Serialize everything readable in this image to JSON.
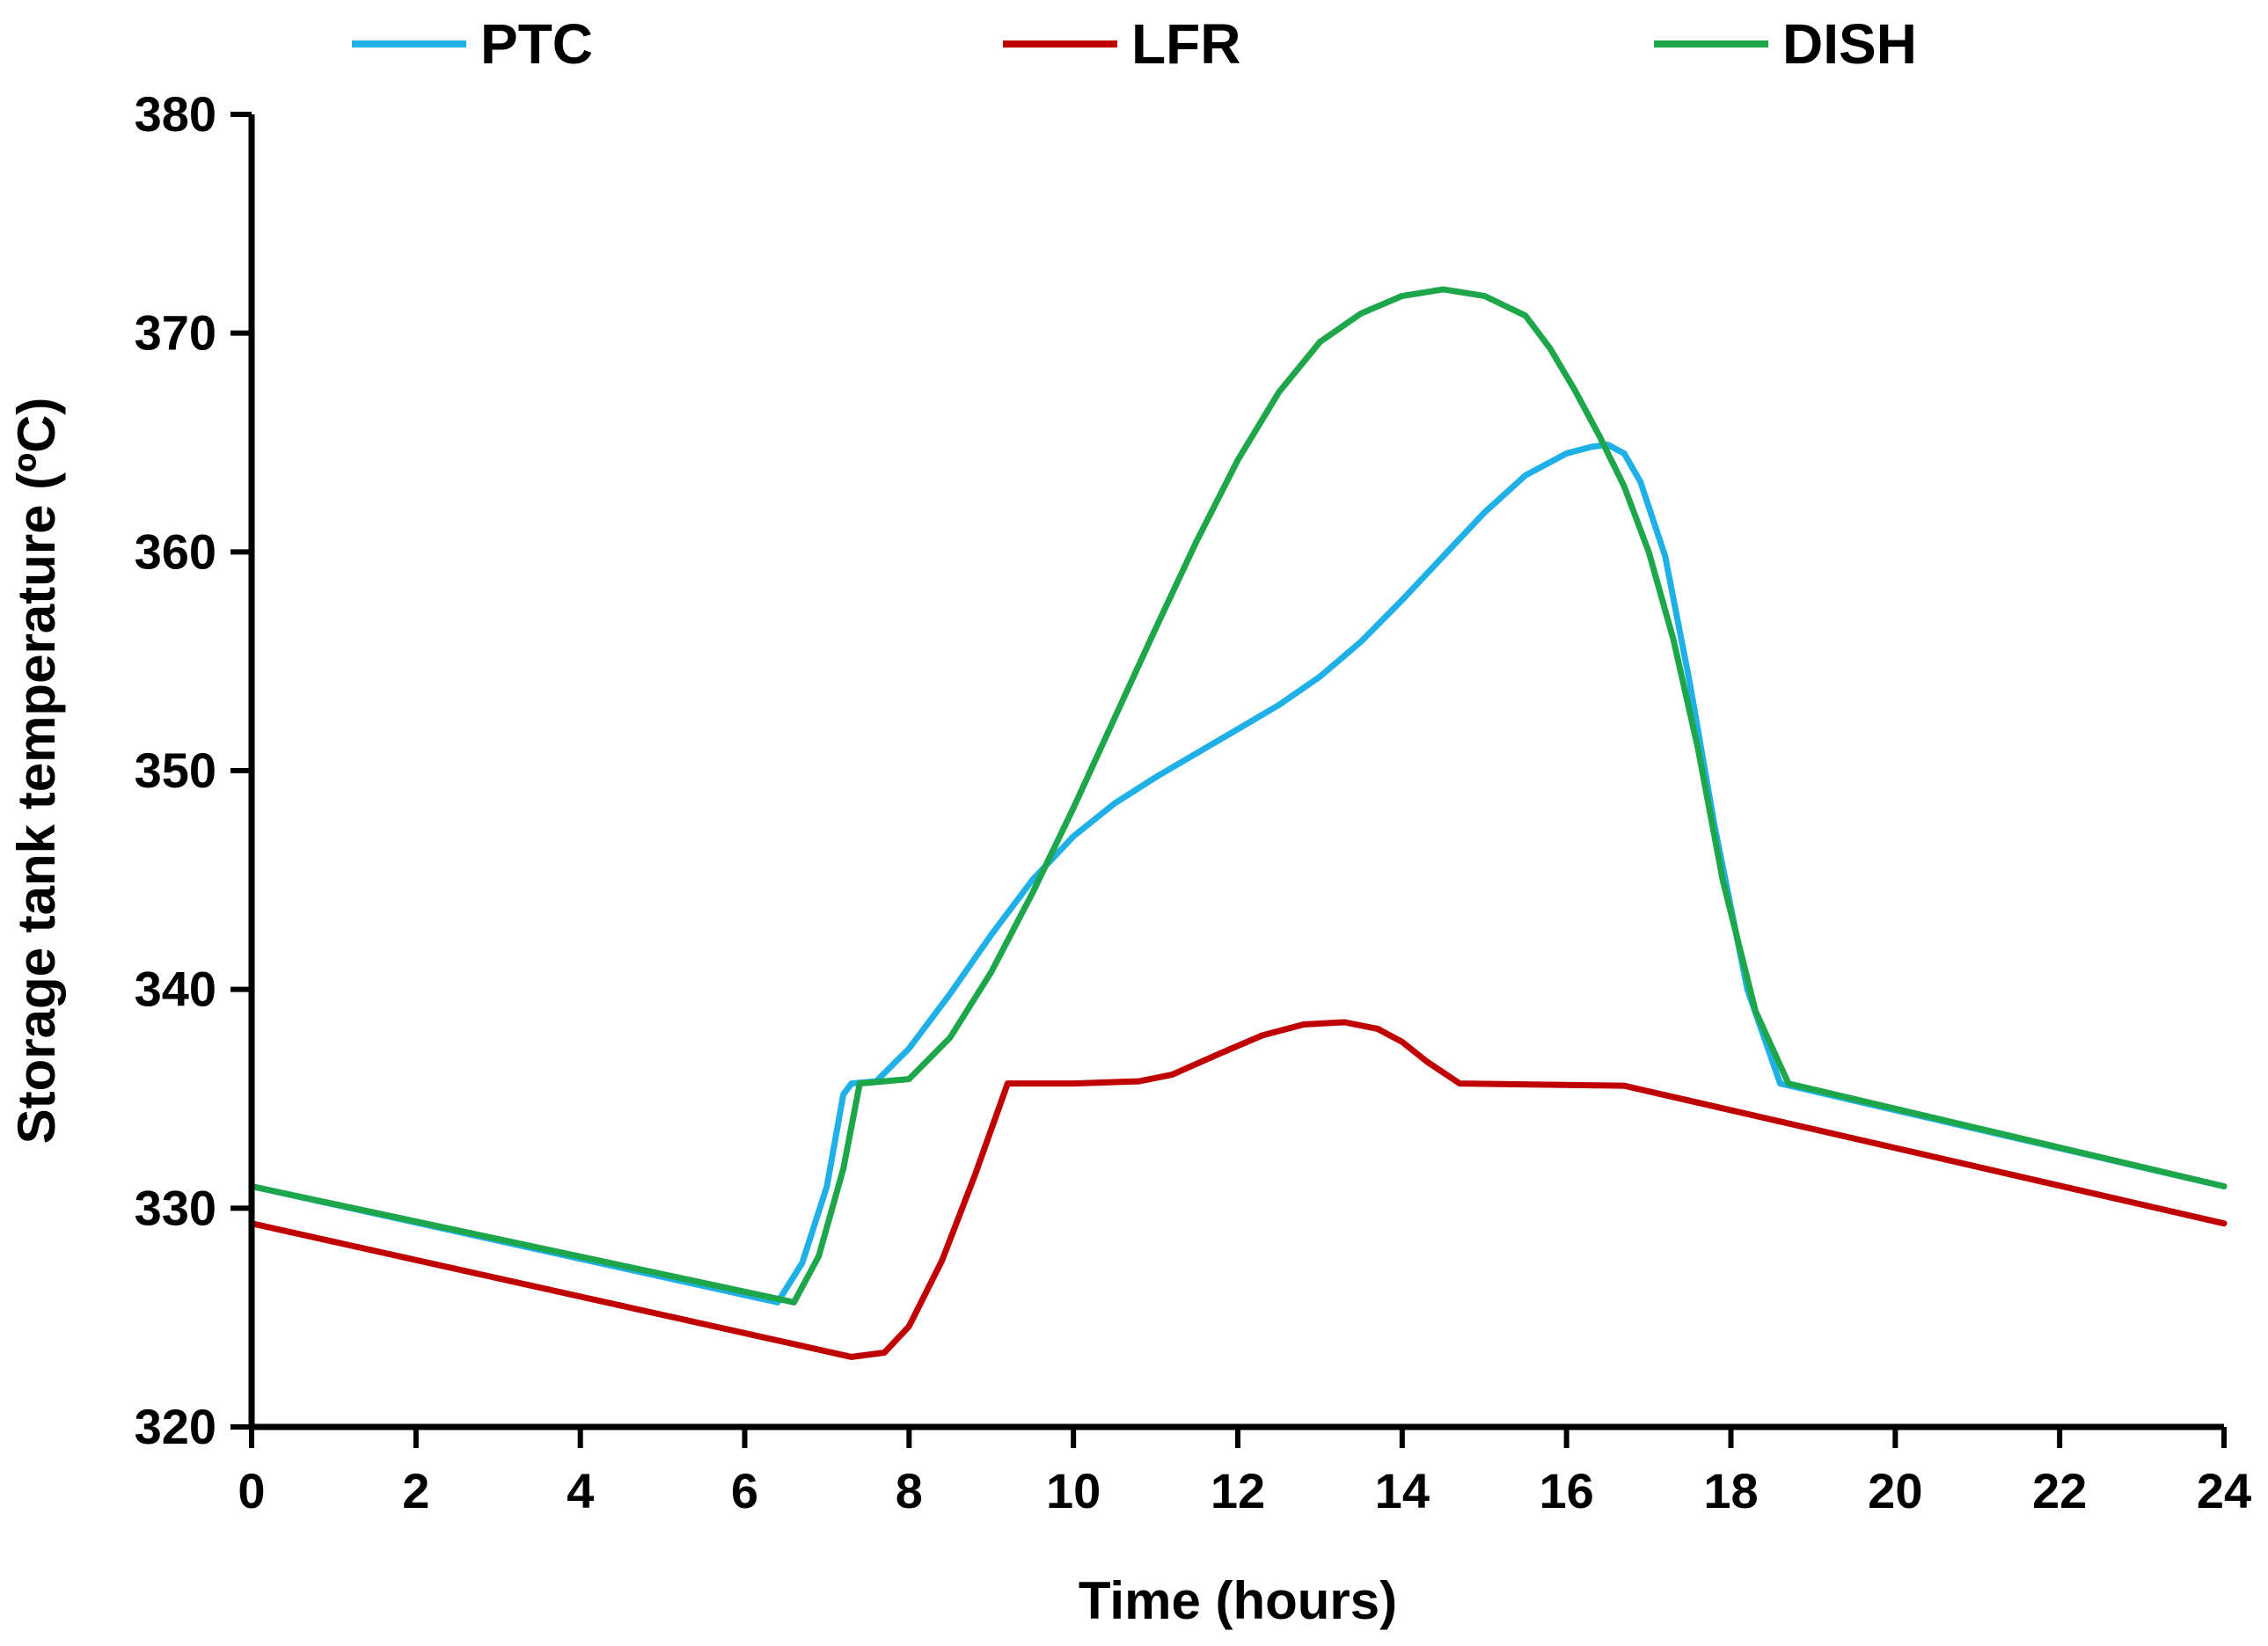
{
  "chart_data": {
    "type": "line",
    "title": "",
    "xlabel": "Time (hours)",
    "ylabel": "Storage tank temperature (ºC)",
    "xlim": [
      0,
      24
    ],
    "ylim": [
      320,
      380
    ],
    "xticks": [
      0,
      2,
      4,
      6,
      8,
      10,
      12,
      14,
      16,
      18,
      20,
      22,
      24
    ],
    "yticks": [
      320,
      330,
      340,
      350,
      360,
      370,
      380
    ],
    "grid": false,
    "legend_position": "top",
    "series": [
      {
        "name": "PTC",
        "color": "#1FB0E8",
        "x": [
          0,
          6.4,
          6.7,
          7.0,
          7.2,
          7.3,
          7.6,
          8.0,
          8.5,
          9.0,
          9.5,
          10.0,
          10.5,
          11.0,
          11.5,
          12.0,
          12.5,
          13.0,
          13.5,
          14.0,
          14.5,
          15.0,
          15.5,
          16.0,
          16.3,
          16.5,
          16.7,
          16.9,
          17.2,
          17.5,
          17.8,
          18.2,
          18.6,
          24
        ],
        "y": [
          331,
          325.7,
          327.5,
          331,
          335.2,
          335.7,
          335.8,
          337.3,
          339.8,
          342.5,
          345,
          347,
          348.5,
          349.7,
          350.8,
          351.9,
          353,
          354.3,
          355.9,
          357.8,
          359.8,
          361.8,
          363.5,
          364.5,
          364.8,
          364.9,
          364.5,
          363.2,
          359.8,
          354,
          347.5,
          340,
          335.7,
          331
        ]
      },
      {
        "name": "LFR",
        "color": "#C00000",
        "x": [
          0,
          7.3,
          7.7,
          8.0,
          8.4,
          8.8,
          9.2,
          10.0,
          10.8,
          11.2,
          11.8,
          12.3,
          12.8,
          13.3,
          13.7,
          14.0,
          14.3,
          14.7,
          16.7,
          24
        ],
        "y": [
          329.3,
          323.2,
          323.4,
          324.6,
          327.6,
          331.5,
          335.7,
          335.7,
          335.8,
          336.1,
          337.1,
          337.9,
          338.4,
          338.5,
          338.2,
          337.6,
          336.7,
          335.7,
          335.6,
          329.3
        ]
      },
      {
        "name": "DISH",
        "color": "#1EA64A",
        "x": [
          0,
          6.6,
          6.9,
          7.2,
          7.4,
          8.0,
          8.5,
          9.0,
          9.5,
          10.0,
          10.5,
          11.0,
          11.5,
          12.0,
          12.5,
          13.0,
          13.5,
          14.0,
          14.5,
          15.0,
          15.5,
          15.8,
          16.1,
          16.4,
          16.7,
          17.0,
          17.3,
          17.6,
          17.9,
          18.3,
          18.7,
          24
        ],
        "y": [
          331,
          325.7,
          327.8,
          331.8,
          335.7,
          335.9,
          337.8,
          340.8,
          344.4,
          348.3,
          352.4,
          356.5,
          360.5,
          364.2,
          367.3,
          369.6,
          370.9,
          371.7,
          372,
          371.7,
          370.8,
          369.3,
          367.4,
          365.3,
          363,
          360,
          356,
          351,
          345,
          339,
          335.7,
          331
        ]
      }
    ]
  }
}
